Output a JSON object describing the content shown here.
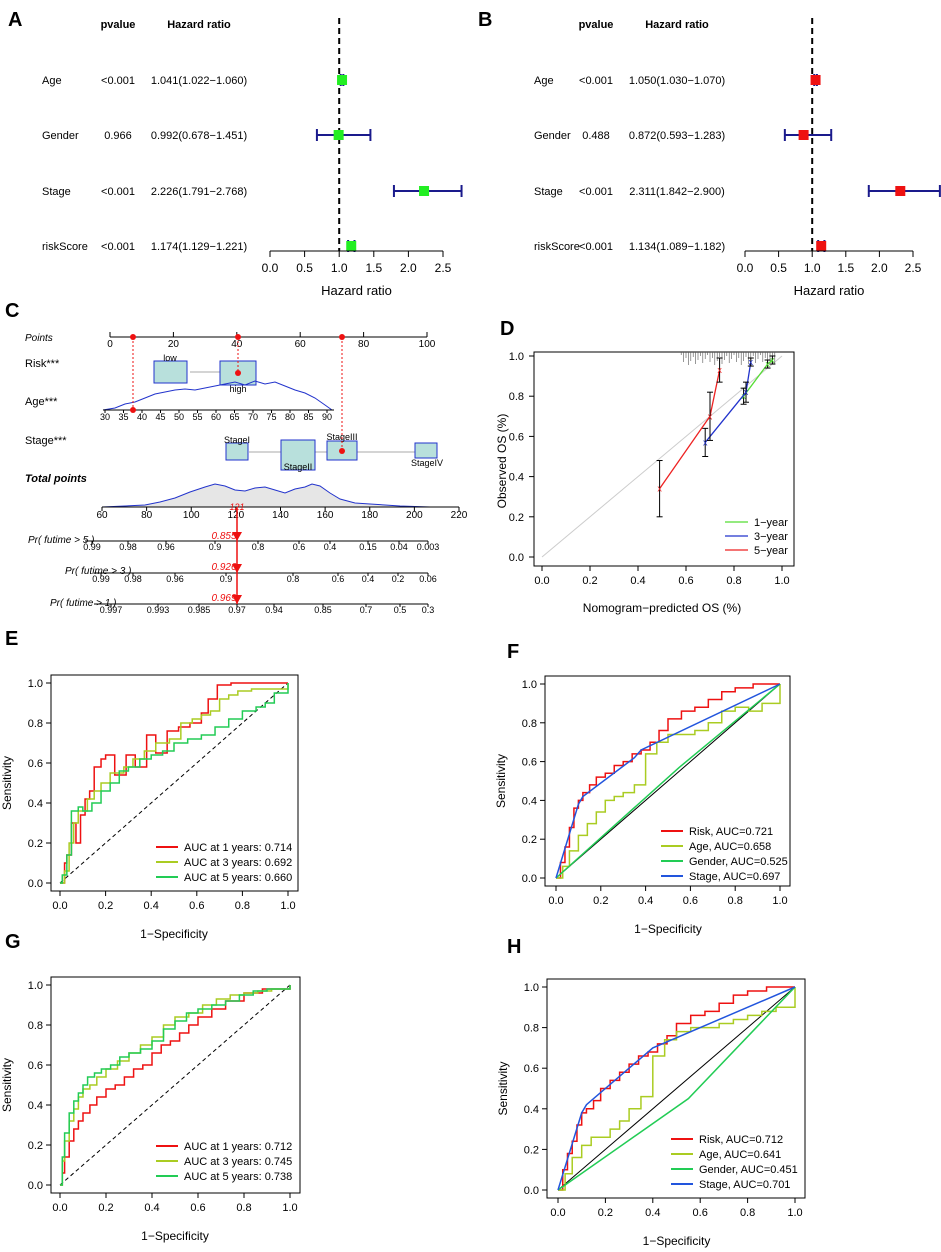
{
  "panel_letters": [
    "A",
    "B",
    "C",
    "D",
    "E",
    "F",
    "G",
    "H"
  ],
  "chart_data": [
    {
      "type": "forest",
      "panel": "A",
      "headers": {
        "pvalue": "pvalue",
        "hr": "Hazard ratio"
      },
      "xlabel": "Hazard ratio",
      "xlim": [
        0,
        2.5
      ],
      "ticks": [
        "0.0",
        "0.5",
        "1.0",
        "1.5",
        "2.0",
        "2.5"
      ],
      "color": "#22ee22",
      "rows": [
        {
          "label": "Age",
          "pvalue": "<0.001",
          "hr_text": "1.041(1.022−1.060)",
          "hr": 1.041,
          "lo": 1.022,
          "hi": 1.06
        },
        {
          "label": "Gender",
          "pvalue": "0.966",
          "hr_text": "0.992(0.678−1.451)",
          "hr": 0.992,
          "lo": 0.678,
          "hi": 1.451
        },
        {
          "label": "Stage",
          "pvalue": "<0.001",
          "hr_text": "2.226(1.791−2.768)",
          "hr": 2.226,
          "lo": 1.791,
          "hi": 2.768
        },
        {
          "label": "riskScore",
          "pvalue": "<0.001",
          "hr_text": "1.174(1.129−1.221)",
          "hr": 1.174,
          "lo": 1.129,
          "hi": 1.221
        }
      ]
    },
    {
      "type": "forest",
      "panel": "B",
      "headers": {
        "pvalue": "pvalue",
        "hr": "Hazard ratio"
      },
      "xlabel": "Hazard ratio",
      "xlim": [
        0,
        2.5
      ],
      "ticks": [
        "0.0",
        "0.5",
        "1.0",
        "1.5",
        "2.0",
        "2.5"
      ],
      "color": "#ee1111",
      "rows": [
        {
          "label": "Age",
          "pvalue": "<0.001",
          "hr_text": "1.050(1.030−1.070)",
          "hr": 1.05,
          "lo": 1.03,
          "hi": 1.07
        },
        {
          "label": "Gender",
          "pvalue": "0.488",
          "hr_text": "0.872(0.593−1.283)",
          "hr": 0.872,
          "lo": 0.593,
          "hi": 1.283
        },
        {
          "label": "Stage",
          "pvalue": "<0.001",
          "hr_text": "2.311(1.842−2.900)",
          "hr": 2.311,
          "lo": 1.842,
          "hi": 2.9
        },
        {
          "label": "riskScore",
          "pvalue": "<0.001",
          "hr_text": "1.134(1.089−1.182)",
          "hr": 1.134,
          "lo": 1.089,
          "hi": 1.182
        }
      ]
    },
    {
      "type": "nomogram",
      "panel": "C",
      "points_label": "Points",
      "points_ticks": [
        "0",
        "20",
        "40",
        "60",
        "80",
        "100"
      ],
      "risk_label": "Risk***",
      "risk_low": "low",
      "risk_high": "high",
      "age_label": "Age***",
      "age_ticks": [
        "30",
        "35",
        "40",
        "45",
        "50",
        "55",
        "60",
        "65",
        "70",
        "75",
        "80",
        "85",
        "90"
      ],
      "stage_label": "Stage***",
      "stages": [
        "StageI",
        "StageII",
        "StageIII",
        "StageIV"
      ],
      "total_label": "Total points",
      "total_ticks": [
        "60",
        "80",
        "100",
        "120",
        "140",
        "160",
        "180",
        "200",
        "220"
      ],
      "total_value": "121",
      "probabilities": [
        {
          "label": "Pr( futime > 5 )",
          "value": "0.855",
          "ticks": [
            "0.99",
            "0.98",
            "0.96",
            "0.9",
            "0.8",
            "0.6",
            "0.4",
            "0.15",
            "0.04",
            "0.003"
          ]
        },
        {
          "label": "Pr( futime > 3 )",
          "value": "0.926",
          "ticks": [
            "0.99",
            "0.98",
            "0.96",
            "0.9",
            "0.8",
            "0.6",
            "0.4",
            "0.2",
            "0.06"
          ]
        },
        {
          "label": "Pr( futime > 1 )",
          "value": "0.969",
          "ticks": [
            "0.997",
            "0.993",
            "0.985",
            "0.97",
            "0.94",
            "0.85",
            "0.7",
            "0.5",
            "0.3"
          ]
        }
      ]
    },
    {
      "type": "line",
      "panel": "D",
      "xlabel": "Nomogram−predicted OS (%)",
      "ylabel": "Observed OS (%)",
      "xlim": [
        0,
        1
      ],
      "ylim": [
        0,
        1
      ],
      "ticks": [
        "0.0",
        "0.2",
        "0.4",
        "0.6",
        "0.8",
        "1.0"
      ],
      "series": [
        {
          "name": "1−year",
          "color": "#55dd33",
          "x": [
            0.84,
            0.94,
            0.96
          ],
          "y": [
            0.8,
            0.96,
            0.98
          ],
          "err": [
            0.04,
            0.02,
            0.02
          ]
        },
        {
          "name": "3−year",
          "color": "#2233cc",
          "x": [
            0.68,
            0.85,
            0.87
          ],
          "y": [
            0.57,
            0.82,
            0.97
          ],
          "err": [
            0.07,
            0.05,
            0.02
          ]
        },
        {
          "name": "5−year",
          "color": "#ee2222",
          "x": [
            0.49,
            0.7,
            0.74
          ],
          "y": [
            0.34,
            0.7,
            0.93
          ],
          "err": [
            0.14,
            0.12,
            0.06
          ]
        }
      ]
    },
    {
      "type": "roc",
      "panel": "E",
      "xlabel": "1−Specificity",
      "ylabel": "Sensitivity",
      "ticks": [
        "0.0",
        "0.2",
        "0.4",
        "0.6",
        "0.8",
        "1.0"
      ],
      "diagonal": "dashed",
      "series": [
        {
          "name": "AUC at 1 years: 0.714",
          "color": "#ee1111",
          "x": [
            0,
            0.02,
            0.03,
            0.05,
            0.07,
            0.09,
            0.11,
            0.13,
            0.15,
            0.18,
            0.2,
            0.24,
            0.29,
            0.33,
            0.38,
            0.42,
            0.47,
            0.52,
            0.57,
            0.62,
            0.65,
            0.69,
            0.75,
            0.8,
            0.88,
            1
          ],
          "y": [
            0,
            0.1,
            0.14,
            0.3,
            0.2,
            0.34,
            0.42,
            0.46,
            0.58,
            0.62,
            0.64,
            0.54,
            0.64,
            0.58,
            0.74,
            0.65,
            0.76,
            0.78,
            0.8,
            0.85,
            0.92,
            0.99,
            1,
            1,
            1,
            1
          ]
        },
        {
          "name": "AUC at 3 years: 0.692",
          "color": "#aacc22",
          "x": [
            0,
            0.02,
            0.04,
            0.06,
            0.08,
            0.12,
            0.15,
            0.18,
            0.22,
            0.28,
            0.32,
            0.37,
            0.42,
            0.48,
            0.53,
            0.58,
            0.62,
            0.66,
            0.7,
            0.74,
            0.78,
            0.84,
            0.9,
            1
          ],
          "y": [
            0,
            0.06,
            0.2,
            0.3,
            0.36,
            0.42,
            0.46,
            0.5,
            0.55,
            0.58,
            0.62,
            0.66,
            0.7,
            0.72,
            0.8,
            0.82,
            0.84,
            0.86,
            0.92,
            0.94,
            0.96,
            0.97,
            0.97,
            1
          ]
        },
        {
          "name": "AUC at 5 years: 0.660",
          "color": "#22cc55",
          "x": [
            0,
            0.01,
            0.03,
            0.05,
            0.08,
            0.1,
            0.14,
            0.18,
            0.22,
            0.26,
            0.3,
            0.35,
            0.4,
            0.45,
            0.5,
            0.56,
            0.62,
            0.68,
            0.74,
            0.8,
            0.86,
            0.9,
            0.94,
            1
          ],
          "y": [
            0,
            0.04,
            0.14,
            0.36,
            0.38,
            0.36,
            0.4,
            0.46,
            0.5,
            0.56,
            0.58,
            0.62,
            0.64,
            0.66,
            0.7,
            0.72,
            0.74,
            0.78,
            0.82,
            0.86,
            0.88,
            0.9,
            0.95,
            1
          ]
        }
      ]
    },
    {
      "type": "roc",
      "panel": "F",
      "xlabel": "1−Specificity",
      "ylabel": "Sensitivity",
      "ticks": [
        "0.0",
        "0.2",
        "0.4",
        "0.6",
        "0.8",
        "1.0"
      ],
      "diagonal": "solid",
      "series": [
        {
          "name": "Risk, AUC=0.721",
          "color": "#ee1111",
          "x": [
            0,
            0.02,
            0.04,
            0.06,
            0.08,
            0.1,
            0.12,
            0.15,
            0.18,
            0.22,
            0.26,
            0.3,
            0.34,
            0.38,
            0.42,
            0.46,
            0.5,
            0.56,
            0.62,
            0.68,
            0.74,
            0.8,
            0.88,
            0.94,
            1
          ],
          "y": [
            0,
            0.08,
            0.16,
            0.26,
            0.36,
            0.4,
            0.44,
            0.48,
            0.52,
            0.54,
            0.58,
            0.6,
            0.64,
            0.66,
            0.7,
            0.76,
            0.82,
            0.86,
            0.88,
            0.92,
            0.96,
            0.98,
            1,
            1,
            1
          ]
        },
        {
          "name": "Age, AUC=0.658",
          "color": "#aacc22",
          "x": [
            0,
            0.03,
            0.06,
            0.1,
            0.14,
            0.18,
            0.22,
            0.26,
            0.3,
            0.35,
            0.4,
            0.45,
            0.5,
            0.56,
            0.62,
            0.68,
            0.74,
            0.8,
            0.86,
            0.92,
            1
          ],
          "y": [
            0,
            0.06,
            0.14,
            0.22,
            0.28,
            0.34,
            0.4,
            0.42,
            0.44,
            0.48,
            0.64,
            0.7,
            0.74,
            0.74,
            0.76,
            0.8,
            0.86,
            0.88,
            0.86,
            0.9,
            1
          ]
        },
        {
          "name": "Gender, AUC=0.525",
          "color": "#22cc55",
          "x": [
            0,
            0.55,
            1
          ],
          "y": [
            0,
            0.57,
            1
          ]
        },
        {
          "name": "Stage, AUC=0.697",
          "color": "#2255dd",
          "x": [
            0,
            0.1,
            0.12,
            0.35,
            0.38,
            1
          ],
          "y": [
            0,
            0.38,
            0.42,
            0.62,
            0.66,
            1
          ]
        }
      ]
    },
    {
      "type": "roc",
      "panel": "G",
      "xlabel": "1−Specificity",
      "ylabel": "Sensitivity",
      "ticks": [
        "0.0",
        "0.2",
        "0.4",
        "0.6",
        "0.8",
        "1.0"
      ],
      "diagonal": "dashed",
      "series": [
        {
          "name": "AUC at 1 years: 0.712",
          "color": "#ee1111",
          "x": [
            0,
            0.01,
            0.02,
            0.04,
            0.06,
            0.08,
            0.1,
            0.13,
            0.16,
            0.2,
            0.24,
            0.28,
            0.32,
            0.36,
            0.4,
            0.44,
            0.48,
            0.52,
            0.56,
            0.6,
            0.66,
            0.72,
            0.8,
            0.88,
            1
          ],
          "y": [
            0,
            0.06,
            0.14,
            0.22,
            0.28,
            0.32,
            0.36,
            0.4,
            0.44,
            0.48,
            0.5,
            0.54,
            0.58,
            0.6,
            0.66,
            0.7,
            0.72,
            0.76,
            0.8,
            0.84,
            0.88,
            0.92,
            0.96,
            0.98,
            1
          ]
        },
        {
          "name": "AUC at 3 years: 0.745",
          "color": "#aacc22",
          "x": [
            0,
            0.01,
            0.02,
            0.04,
            0.06,
            0.08,
            0.1,
            0.13,
            0.16,
            0.2,
            0.25,
            0.3,
            0.35,
            0.4,
            0.45,
            0.5,
            0.56,
            0.62,
            0.68,
            0.74,
            0.8,
            0.86,
            0.92,
            1
          ],
          "y": [
            0,
            0.12,
            0.22,
            0.32,
            0.38,
            0.44,
            0.48,
            0.5,
            0.54,
            0.58,
            0.62,
            0.66,
            0.7,
            0.74,
            0.8,
            0.84,
            0.86,
            0.9,
            0.93,
            0.95,
            0.96,
            0.97,
            0.98,
            1
          ]
        },
        {
          "name": "AUC at 5 years: 0.738",
          "color": "#22cc55",
          "x": [
            0,
            0.01,
            0.02,
            0.04,
            0.06,
            0.08,
            0.1,
            0.12,
            0.15,
            0.18,
            0.22,
            0.26,
            0.3,
            0.35,
            0.4,
            0.45,
            0.5,
            0.55,
            0.6,
            0.66,
            0.72,
            0.78,
            0.84,
            0.9,
            1
          ],
          "y": [
            0,
            0.14,
            0.26,
            0.36,
            0.42,
            0.46,
            0.5,
            0.54,
            0.56,
            0.58,
            0.6,
            0.64,
            0.66,
            0.68,
            0.72,
            0.78,
            0.82,
            0.86,
            0.88,
            0.9,
            0.92,
            0.95,
            0.97,
            0.98,
            1
          ]
        }
      ]
    },
    {
      "type": "roc",
      "panel": "H",
      "xlabel": "1−Specificity",
      "ylabel": "Sensitivity",
      "ticks": [
        "0.0",
        "0.2",
        "0.4",
        "0.6",
        "0.8",
        "1.0"
      ],
      "diagonal": "solid",
      "series": [
        {
          "name": "Risk, AUC=0.712",
          "color": "#ee1111",
          "x": [
            0,
            0.02,
            0.04,
            0.06,
            0.08,
            0.1,
            0.12,
            0.15,
            0.18,
            0.22,
            0.26,
            0.3,
            0.34,
            0.38,
            0.42,
            0.46,
            0.5,
            0.56,
            0.62,
            0.68,
            0.74,
            0.8,
            0.88,
            0.94,
            1
          ],
          "y": [
            0,
            0.1,
            0.18,
            0.24,
            0.32,
            0.38,
            0.4,
            0.44,
            0.5,
            0.54,
            0.58,
            0.62,
            0.66,
            0.68,
            0.72,
            0.76,
            0.82,
            0.86,
            0.88,
            0.92,
            0.96,
            0.98,
            1,
            1,
            1
          ]
        },
        {
          "name": "Age, AUC=0.641",
          "color": "#aacc22",
          "x": [
            0,
            0.03,
            0.06,
            0.1,
            0.14,
            0.18,
            0.22,
            0.26,
            0.3,
            0.35,
            0.4,
            0.45,
            0.5,
            0.56,
            0.62,
            0.68,
            0.74,
            0.8,
            0.86,
            0.92,
            1
          ],
          "y": [
            0,
            0.08,
            0.16,
            0.22,
            0.26,
            0.26,
            0.3,
            0.34,
            0.4,
            0.46,
            0.66,
            0.74,
            0.78,
            0.8,
            0.8,
            0.82,
            0.84,
            0.86,
            0.88,
            0.9,
            1
          ]
        },
        {
          "name": "Gender, AUC=0.451",
          "color": "#22cc55",
          "x": [
            0,
            0.55,
            1
          ],
          "y": [
            0,
            0.45,
            1
          ]
        },
        {
          "name": "Stage, AUC=0.701",
          "color": "#2255dd",
          "x": [
            0,
            0.1,
            0.12,
            0.36,
            0.4,
            1
          ],
          "y": [
            0,
            0.38,
            0.42,
            0.66,
            0.7,
            1
          ]
        }
      ]
    }
  ]
}
